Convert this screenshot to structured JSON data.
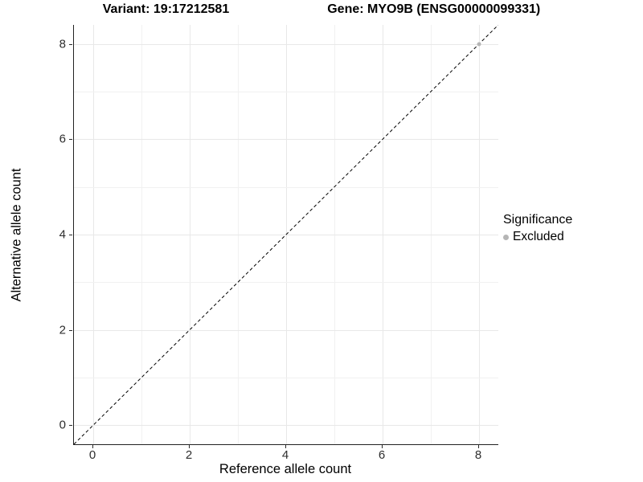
{
  "chart_data": {
    "type": "scatter",
    "title_left": "Variant: 19:17212581",
    "title_right": "Gene: MYO9B (ENSG00000099331)",
    "xlabel": "Reference allele count",
    "ylabel": "Alternative allele count",
    "xlim": [
      -0.4,
      8.4
    ],
    "ylim": [
      -0.4,
      8.4
    ],
    "xticks": [
      0,
      2,
      4,
      6,
      8
    ],
    "yticks": [
      0,
      2,
      4,
      6,
      8
    ],
    "grid_step": 1,
    "grid": "on",
    "reference_line": {
      "type": "abline",
      "slope": 1,
      "intercept": 0,
      "linestyle": "dashed",
      "color": "#000000"
    },
    "series": [
      {
        "name": "Excluded",
        "color": "#b5b5b5",
        "points": [
          {
            "x": 8,
            "y": 8
          }
        ]
      }
    ],
    "legend": {
      "title": "Significance",
      "position": "right",
      "items": [
        {
          "label": "Excluded",
          "color": "#b5b5b5",
          "marker": "circle-icon"
        }
      ]
    },
    "colors": {
      "background": "#ffffff",
      "grid_major": "#e8e8e8",
      "grid_minor": "#f1f1f1",
      "axis_line": "#222222",
      "tick_text": "#2e2e2e"
    }
  }
}
